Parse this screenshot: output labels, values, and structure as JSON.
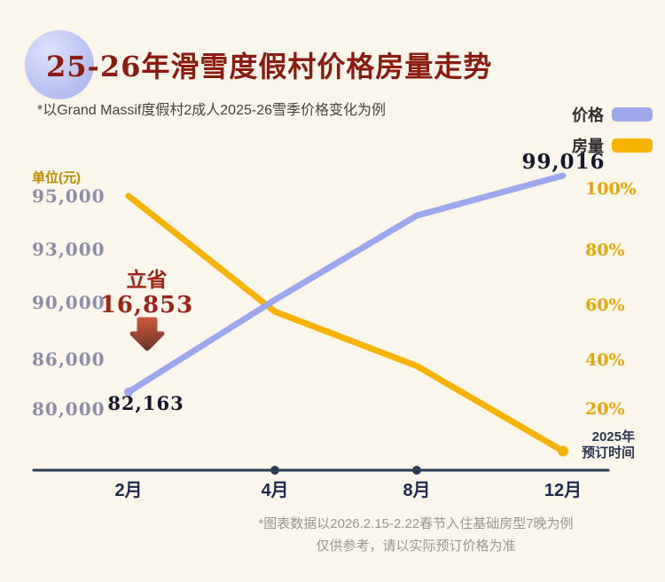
{
  "header": {
    "title": "25-26年滑雪度假村价格房量走势",
    "subtitle": "*以Grand Massif度假村2成人2025-26雪季价格变化为例"
  },
  "legend": {
    "items": [
      {
        "label": "价格",
        "color": "#9da8ec"
      },
      {
        "label": "房量",
        "color": "#f6b400"
      }
    ]
  },
  "axis": {
    "unit_label": "单位(元)",
    "note_line1": "2025年",
    "note_line2": "预订时间"
  },
  "annotation": {
    "save_label": "立省",
    "save_amount": "16,853"
  },
  "point_labels": {
    "start_price": "82,163",
    "end_price": "99,016"
  },
  "footer": {
    "line1": "*图表数据以2026.2.15-2.22春节入住基础房型7晚为例",
    "line2": "仅供参考，请以实际预订价格为准"
  },
  "chart_data": {
    "type": "line",
    "title": "25-26年滑雪度假村价格房量走势",
    "categories": [
      "2月",
      "4月",
      "8月",
      "12月"
    ],
    "series": [
      {
        "name": "价格",
        "axis": "left",
        "unit": "元",
        "color": "#9da8ec",
        "values": [
          82163,
          90200,
          94300,
          99016
        ]
      },
      {
        "name": "房量",
        "axis": "right",
        "unit": "%",
        "color": "#f6b400",
        "values": [
          98,
          58,
          38,
          5
        ]
      }
    ],
    "left_axis": {
      "label": "单位(元)",
      "ticks": [
        "95,000",
        "93,000",
        "90,000",
        "86,000",
        "80,000"
      ],
      "tick_values": [
        95000,
        93000,
        90000,
        86000,
        80000
      ]
    },
    "right_axis": {
      "ticks": [
        "100%",
        "80%",
        "60%",
        "40%",
        "20%"
      ],
      "tick_values": [
        100,
        80,
        60,
        40,
        20
      ]
    },
    "x_axis_note": "2025年预订时间",
    "savings_annotation": "立省 16,853"
  }
}
